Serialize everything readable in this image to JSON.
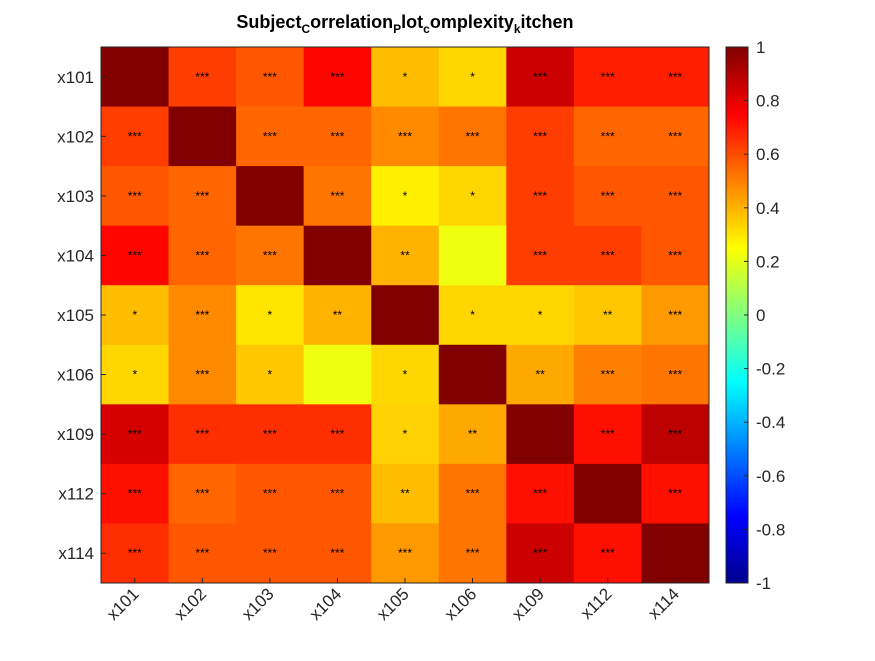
{
  "chart_data": {
    "type": "heatmap",
    "title_parts": [
      {
        "text": "Subject",
        "sub": false
      },
      {
        "text": "C",
        "sub": true
      },
      {
        "text": "orrelation",
        "sub": false
      },
      {
        "text": "P",
        "sub": true
      },
      {
        "text": "lot",
        "sub": false
      },
      {
        "text": "c",
        "sub": true
      },
      {
        "text": "omplexity",
        "sub": false
      },
      {
        "text": "k",
        "sub": true
      },
      {
        "text": "itchen",
        "sub": false
      }
    ],
    "row_labels": [
      "x101",
      "x102",
      "x103",
      "x104",
      "x105",
      "x106",
      "x109",
      "x112",
      "x114"
    ],
    "col_labels": [
      "x101",
      "x102",
      "x103",
      "x104",
      "x105",
      "x106",
      "x109",
      "x112",
      "x114"
    ],
    "values": [
      [
        1.0,
        0.63,
        0.58,
        0.74,
        0.38,
        0.33,
        0.85,
        0.69,
        0.69
      ],
      [
        0.63,
        1.0,
        0.55,
        0.55,
        0.48,
        0.52,
        0.63,
        0.55,
        0.55
      ],
      [
        0.58,
        0.55,
        1.0,
        0.52,
        0.28,
        0.33,
        0.63,
        0.58,
        0.58
      ],
      [
        0.74,
        0.55,
        0.52,
        1.0,
        0.4,
        0.22,
        0.63,
        0.63,
        0.58
      ],
      [
        0.38,
        0.48,
        0.3,
        0.4,
        1.0,
        0.33,
        0.33,
        0.36,
        0.45
      ],
      [
        0.33,
        0.48,
        0.36,
        0.22,
        0.33,
        1.0,
        0.42,
        0.5,
        0.52
      ],
      [
        0.83,
        0.66,
        0.66,
        0.66,
        0.34,
        0.42,
        1.0,
        0.72,
        0.88
      ],
      [
        0.72,
        0.55,
        0.58,
        0.58,
        0.38,
        0.52,
        0.72,
        1.0,
        0.72
      ],
      [
        0.66,
        0.58,
        0.58,
        0.58,
        0.45,
        0.52,
        0.85,
        0.72,
        1.0
      ]
    ],
    "stars": [
      [
        "",
        "***",
        "***",
        "***",
        "*",
        "*",
        "***",
        "***",
        "***"
      ],
      [
        "***",
        "",
        "***",
        "***",
        "***",
        "***",
        "***",
        "***",
        "***"
      ],
      [
        "***",
        "***",
        "",
        "***",
        "*",
        "*",
        "***",
        "***",
        "***"
      ],
      [
        "***",
        "***",
        "***",
        "",
        "**",
        "",
        "***",
        "***",
        "***"
      ],
      [
        "*",
        "***",
        "*",
        "**",
        "",
        "*",
        "*",
        "**",
        "***"
      ],
      [
        "*",
        "***",
        "*",
        "",
        "*",
        "",
        "**",
        "***",
        "***"
      ],
      [
        "***",
        "***",
        "***",
        "***",
        "*",
        "**",
        "",
        "***",
        "***"
      ],
      [
        "***",
        "***",
        "***",
        "***",
        "**",
        "***",
        "***",
        "",
        "***"
      ],
      [
        "***",
        "***",
        "***",
        "***",
        "***",
        "***",
        "***",
        "***",
        ""
      ]
    ],
    "colorbar": {
      "colormap": "jet",
      "clim": [
        -1,
        1
      ],
      "ticks": [
        -1,
        -0.8,
        -0.6,
        -0.4,
        -0.2,
        0,
        0.2,
        0.4,
        0.6,
        0.8,
        1
      ],
      "tick_labels": [
        "-1",
        "-0.8",
        "-0.6",
        "-0.4",
        "-0.2",
        "0",
        "0.2",
        "0.4",
        "0.6",
        "0.8",
        "1"
      ]
    }
  }
}
